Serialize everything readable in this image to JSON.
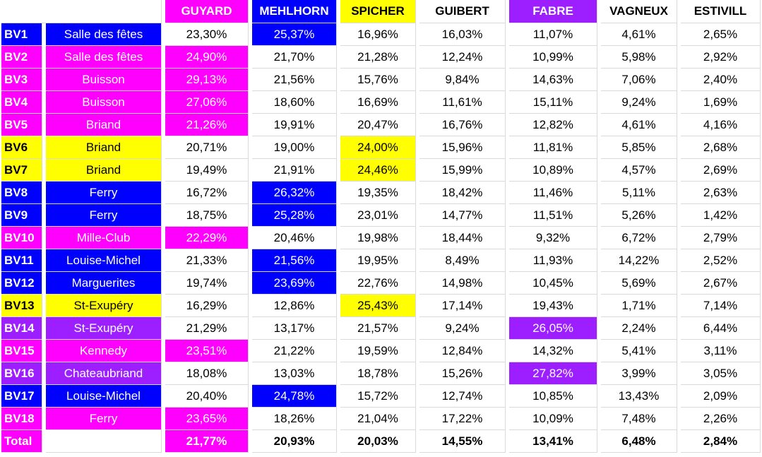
{
  "colors": {
    "pink": "#ff00ff",
    "blue": "#0000ff",
    "yellow": "#ffff00",
    "purple": "#9d1fff",
    "white": "#ffffff"
  },
  "headers": [
    {
      "label": "GUYARD",
      "color": "pink"
    },
    {
      "label": "MEHLHORN",
      "color": "blue"
    },
    {
      "label": "SPICHER",
      "color": "yellow"
    },
    {
      "label": "GUIBERT",
      "color": "white"
    },
    {
      "label": "FABRE",
      "color": "purple"
    },
    {
      "label": "VAGNEUX",
      "color": "white"
    },
    {
      "label": "ESTIVILL",
      "color": "white"
    }
  ],
  "rows": [
    {
      "bv": "BV1",
      "place": "Salle des fêtes",
      "color": "blue",
      "winner": 1,
      "values": [
        "23,30%",
        "25,37%",
        "16,96%",
        "16,03%",
        "11,07%",
        "4,61%",
        "2,65%"
      ]
    },
    {
      "bv": "BV2",
      "place": "Salle des fêtes",
      "color": "pink",
      "winner": 0,
      "values": [
        "24,90%",
        "21,70%",
        "21,28%",
        "12,24%",
        "10,99%",
        "5,98%",
        "2,92%"
      ]
    },
    {
      "bv": "BV3",
      "place": "Buisson",
      "color": "pink",
      "winner": 0,
      "values": [
        "29,13%",
        "21,56%",
        "15,76%",
        "9,84%",
        "14,63%",
        "7,06%",
        "2,40%"
      ]
    },
    {
      "bv": "BV4",
      "place": "Buisson",
      "color": "pink",
      "winner": 0,
      "values": [
        "27,06%",
        "18,60%",
        "16,69%",
        "11,61%",
        "15,11%",
        "9,24%",
        "1,69%"
      ]
    },
    {
      "bv": "BV5",
      "place": "Briand",
      "color": "pink",
      "winner": 0,
      "values": [
        "21,26%",
        "19,91%",
        "20,47%",
        "16,76%",
        "12,82%",
        "4,61%",
        "4,16%"
      ]
    },
    {
      "bv": "BV6",
      "place": "Briand",
      "color": "yellow",
      "winner": 2,
      "values": [
        "20,71%",
        "19,00%",
        "24,00%",
        "15,96%",
        "11,81%",
        "5,85%",
        "2,68%"
      ]
    },
    {
      "bv": "BV7",
      "place": "Briand",
      "color": "yellow",
      "winner": 2,
      "values": [
        "19,49%",
        "21,91%",
        "24,46%",
        "15,99%",
        "10,89%",
        "4,57%",
        "2,69%"
      ]
    },
    {
      "bv": "BV8",
      "place": "Ferry",
      "color": "blue",
      "winner": 1,
      "values": [
        "16,72%",
        "26,32%",
        "19,35%",
        "18,42%",
        "11,46%",
        "5,11%",
        "2,63%"
      ]
    },
    {
      "bv": "BV9",
      "place": "Ferry",
      "color": "blue",
      "winner": 1,
      "values": [
        "18,75%",
        "25,28%",
        "23,01%",
        "14,77%",
        "11,51%",
        "5,26%",
        "1,42%"
      ]
    },
    {
      "bv": "BV10",
      "place": "Mille-Club",
      "color": "pink",
      "winner": 0,
      "values": [
        "22,29%",
        "20,46%",
        "19,98%",
        "18,44%",
        "9,32%",
        "6,72%",
        "2,79%"
      ]
    },
    {
      "bv": "BV11",
      "place": "Louise-Michel",
      "color": "blue",
      "winner": 1,
      "values": [
        "21,33%",
        "21,56%",
        "19,95%",
        "8,49%",
        "11,93%",
        "14,22%",
        "2,52%"
      ]
    },
    {
      "bv": "BV12",
      "place": "Marguerites",
      "color": "blue",
      "winner": 1,
      "values": [
        "19,74%",
        "23,69%",
        "22,76%",
        "14,98%",
        "10,45%",
        "5,69%",
        "2,67%"
      ]
    },
    {
      "bv": "BV13",
      "place": "St-Exupéry",
      "color": "yellow",
      "winner": 2,
      "values": [
        "16,29%",
        "12,86%",
        "25,43%",
        "17,14%",
        "19,43%",
        "1,71%",
        "7,14%"
      ]
    },
    {
      "bv": "BV14",
      "place": "St-Exupéry",
      "color": "purple",
      "winner": 4,
      "values": [
        "21,29%",
        "13,17%",
        "21,57%",
        "9,24%",
        "26,05%",
        "2,24%",
        "6,44%"
      ]
    },
    {
      "bv": "BV15",
      "place": "Kennedy",
      "color": "pink",
      "winner": 0,
      "values": [
        "23,51%",
        "21,22%",
        "19,59%",
        "12,84%",
        "14,32%",
        "5,41%",
        "3,11%"
      ]
    },
    {
      "bv": "BV16",
      "place": "Chateaubriand",
      "color": "purple",
      "winner": 4,
      "values": [
        "18,08%",
        "13,03%",
        "18,78%",
        "15,26%",
        "27,82%",
        "3,99%",
        "3,05%"
      ]
    },
    {
      "bv": "BV17",
      "place": "Louise-Michel",
      "color": "blue",
      "winner": 1,
      "values": [
        "20,40%",
        "24,78%",
        "15,72%",
        "12,74%",
        "10,85%",
        "13,43%",
        "2,09%"
      ]
    },
    {
      "bv": "BV18",
      "place": "Ferry",
      "color": "pink",
      "winner": 0,
      "values": [
        "23,65%",
        "18,26%",
        "21,04%",
        "17,22%",
        "10,09%",
        "7,48%",
        "2,26%"
      ]
    }
  ],
  "total": {
    "label": "Total",
    "color": "pink",
    "winner": 0,
    "values": [
      "21,77%",
      "20,93%",
      "20,03%",
      "14,55%",
      "13,41%",
      "6,48%",
      "2,84%"
    ]
  }
}
